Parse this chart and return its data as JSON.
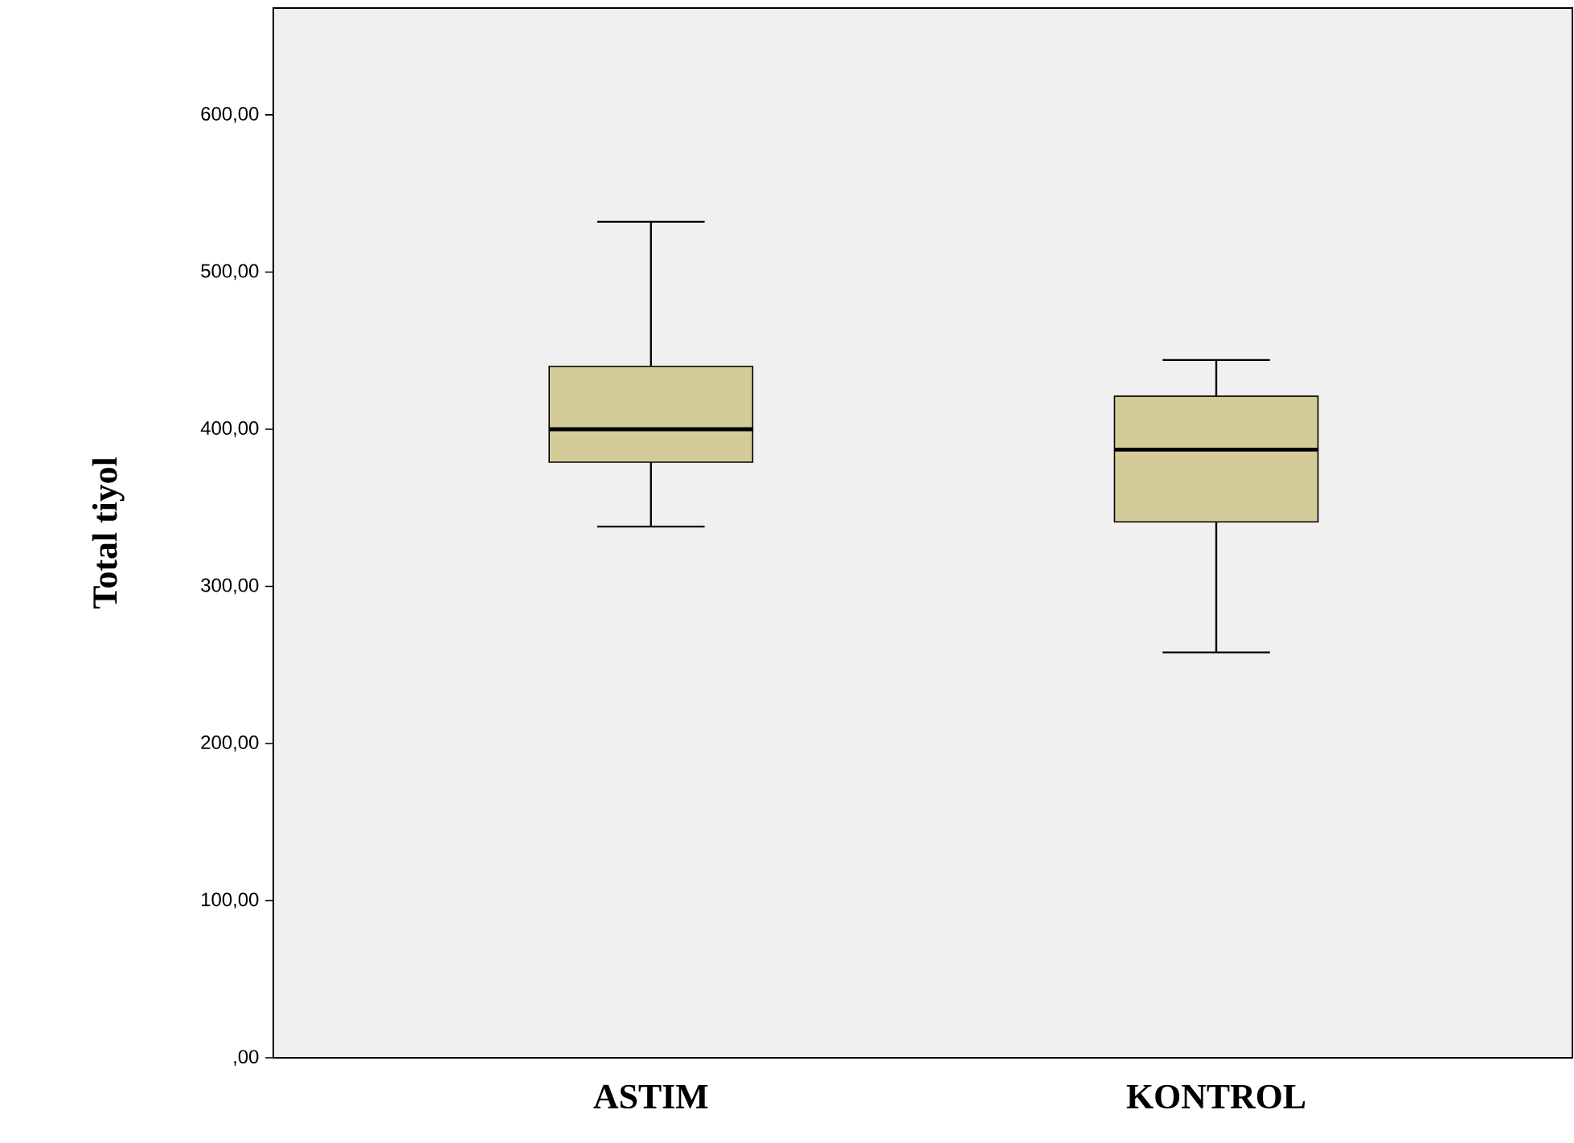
{
  "chart_data": {
    "type": "box",
    "ylabel": "Total tiyol",
    "categories": [
      "ASTIM",
      "KONTROL"
    ],
    "boxes": [
      {
        "low": 338,
        "q1": 379,
        "median": 400,
        "q3": 440,
        "high": 532
      },
      {
        "low": 258,
        "q1": 341,
        "median": 387,
        "q3": 421,
        "high": 444
      }
    ],
    "color": "#d4cc98",
    "ylim": [
      0,
      668
    ],
    "yticks": [
      {
        "value": 0,
        "label": ",00"
      },
      {
        "value": 100,
        "label": "100,00"
      },
      {
        "value": 200,
        "label": "200,00"
      },
      {
        "value": 300,
        "label": "300,00"
      },
      {
        "value": 400,
        "label": "400,00"
      },
      {
        "value": 500,
        "label": "500,00"
      },
      {
        "value": 600,
        "label": "600,00"
      }
    ],
    "grid": false
  }
}
